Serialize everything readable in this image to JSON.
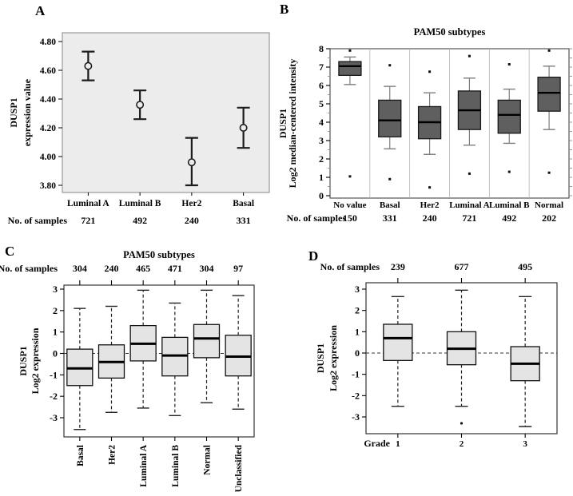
{
  "figure": {
    "description": "DUSP1 expression in breast cancer subtypes, four-panel figure"
  },
  "colors": {
    "text": "#000000",
    "panel_a_bg": "#ececec",
    "panel_a_frame": "#9a9a9a",
    "errorbar": "#1c1c1c",
    "box_dark_fill": "#5f5f5f",
    "box_dark_stroke": "#1a1a1a",
    "whisker_gray": "#7d7d7d",
    "separator": "#b3b3b3",
    "minor_tick": "#8f8f8f",
    "box_light_fill": "#e4e4e4",
    "box_light_stroke": "#111111",
    "frame_dark": "#333333",
    "median": "#000000"
  },
  "chart_data": [
    {
      "panel": "A",
      "type": "errorbar",
      "title": "",
      "ylabel_lines": [
        "DUSP1",
        "expression value"
      ],
      "samples_label": "No. of samples",
      "ylim": [
        3.75,
        4.86
      ],
      "yticks": [
        3.8,
        4.0,
        4.2,
        4.4,
        4.6,
        4.8
      ],
      "grid": false,
      "points": [
        {
          "category": "Luminal A",
          "n": 721,
          "mean": 4.63,
          "lower": 4.53,
          "upper": 4.73
        },
        {
          "category": "Luminal B",
          "n": 492,
          "mean": 4.36,
          "lower": 4.26,
          "upper": 4.46
        },
        {
          "category": "Her2",
          "n": 240,
          "mean": 3.96,
          "lower": 3.8,
          "upper": 4.13
        },
        {
          "category": "Basal",
          "n": 331,
          "mean": 4.2,
          "lower": 4.06,
          "upper": 4.34
        }
      ]
    },
    {
      "panel": "B",
      "type": "box",
      "style": "dark",
      "title": "PAM50 subtypes",
      "ylabel_lines": [
        "DUSP1",
        "Log2 median-centered intensity"
      ],
      "samples_label": "No. of samples",
      "ylim": [
        0,
        8
      ],
      "yticks": [
        0,
        1,
        2,
        3,
        4,
        5,
        6,
        7,
        8
      ],
      "minor_tick_step": 0.5,
      "grid": false,
      "boxes": [
        {
          "category": "No value",
          "n": 150,
          "low": 6.05,
          "q1": 6.55,
          "median": 7.05,
          "q3": 7.3,
          "high": 7.55,
          "outliers": [
            7.9,
            1.05
          ]
        },
        {
          "category": "Basal",
          "n": 331,
          "low": 2.55,
          "q1": 3.2,
          "median": 4.1,
          "q3": 5.2,
          "high": 5.95,
          "outliers": [
            7.1,
            0.9
          ]
        },
        {
          "category": "Her2",
          "n": 240,
          "low": 2.25,
          "q1": 3.1,
          "median": 4.0,
          "q3": 4.85,
          "high": 5.6,
          "outliers": [
            6.75,
            0.45
          ]
        },
        {
          "category": "Luminal A",
          "n": 721,
          "low": 2.75,
          "q1": 3.6,
          "median": 4.65,
          "q3": 5.7,
          "high": 6.4,
          "outliers": [
            7.6,
            1.2
          ]
        },
        {
          "category": "Luminal B",
          "n": 492,
          "low": 2.85,
          "q1": 3.4,
          "median": 4.4,
          "q3": 5.2,
          "high": 5.8,
          "outliers": [
            7.15,
            1.3
          ]
        },
        {
          "category": "Normal",
          "n": 202,
          "low": 3.6,
          "q1": 4.6,
          "median": 5.6,
          "q3": 6.45,
          "high": 7.05,
          "outliers": [
            7.9,
            1.25
          ]
        }
      ]
    },
    {
      "panel": "C",
      "type": "box",
      "style": "light",
      "title": "PAM50 subtypes",
      "ylabel_lines": [
        "DUSP1",
        "Log2 expression"
      ],
      "samples_label": "No. of samples",
      "ylim": [
        -3.9,
        3.2
      ],
      "yticks": [
        -3,
        -2,
        -1,
        0,
        1,
        2,
        3
      ],
      "zero_line": true,
      "rotate_category_labels": true,
      "grid": false,
      "boxes": [
        {
          "category": "Basal",
          "n": 304,
          "low": -3.55,
          "q1": -1.5,
          "median": -0.7,
          "q3": 0.2,
          "high": 2.1,
          "outliers": []
        },
        {
          "category": "Her2",
          "n": 240,
          "low": -2.75,
          "q1": -1.15,
          "median": -0.4,
          "q3": 0.4,
          "high": 2.2,
          "outliers": []
        },
        {
          "category": "Luminal A",
          "n": 465,
          "low": -2.55,
          "q1": -0.35,
          "median": 0.45,
          "q3": 1.3,
          "high": 2.95,
          "outliers": []
        },
        {
          "category": "Luminal B",
          "n": 471,
          "low": -2.9,
          "q1": -1.05,
          "median": -0.1,
          "q3": 0.75,
          "high": 2.35,
          "outliers": []
        },
        {
          "category": "Normal",
          "n": 304,
          "low": -2.3,
          "q1": -0.2,
          "median": 0.7,
          "q3": 1.35,
          "high": 2.95,
          "outliers": []
        },
        {
          "category": "Unclassified",
          "n": 97,
          "low": -2.6,
          "q1": -1.05,
          "median": -0.15,
          "q3": 0.85,
          "high": 2.7,
          "outliers": []
        }
      ]
    },
    {
      "panel": "D",
      "type": "box",
      "style": "light",
      "title": "",
      "ylabel_lines": [
        "DUSP1",
        "Log2 expression"
      ],
      "samples_label": "No. of samples",
      "xaxis_label": "Grade",
      "ylim": [
        -3.9,
        3.2
      ],
      "yticks": [
        -3,
        -2,
        -1,
        0,
        1,
        2,
        3
      ],
      "zero_line": true,
      "grid": false,
      "boxes": [
        {
          "category": "1",
          "n": 239,
          "low": -2.5,
          "q1": -0.35,
          "median": 0.7,
          "q3": 1.35,
          "high": 2.65,
          "outliers": []
        },
        {
          "category": "2",
          "n": 677,
          "low": -2.5,
          "q1": -0.55,
          "median": 0.2,
          "q3": 1.0,
          "high": 2.95,
          "outliers": [
            -3.3
          ]
        },
        {
          "category": "3",
          "n": 495,
          "low": -3.45,
          "q1": -1.3,
          "median": -0.5,
          "q3": 0.3,
          "high": 2.65,
          "outliers": []
        }
      ]
    }
  ]
}
